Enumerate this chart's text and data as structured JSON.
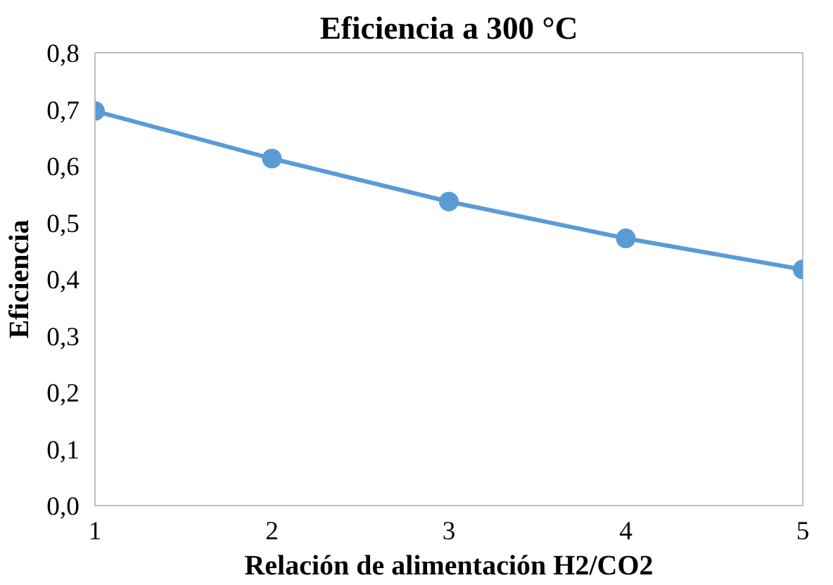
{
  "chart_data": {
    "type": "line",
    "title": "Eficiencia a 300 °C",
    "xlabel": "Relación de alimentación H2/CO2",
    "ylabel": "Eficiencia",
    "x": [
      1,
      2,
      3,
      4,
      5
    ],
    "series": [
      {
        "color": "#5b9bd5",
        "values": [
          0.697,
          0.613,
          0.537,
          0.472,
          0.417
        ]
      }
    ],
    "xlim": [
      1,
      5
    ],
    "xticks": [
      1,
      2,
      3,
      4,
      5
    ],
    "ylim": [
      0,
      0.8
    ],
    "yticks": [
      {
        "value": 0,
        "label": "0,0"
      },
      {
        "value": 0.1,
        "label": "0,1"
      },
      {
        "value": 0.2,
        "label": "0,2"
      },
      {
        "value": 0.3,
        "label": "0,3"
      },
      {
        "value": 0.4,
        "label": "0,4"
      },
      {
        "value": 0.5,
        "label": "0,5"
      },
      {
        "value": 0.6,
        "label": "0,6"
      },
      {
        "value": 0.7,
        "label": "0,7"
      },
      {
        "value": 0.8,
        "label": "0,8"
      }
    ],
    "grid": false,
    "marker": "circle",
    "line_style": "solid"
  }
}
